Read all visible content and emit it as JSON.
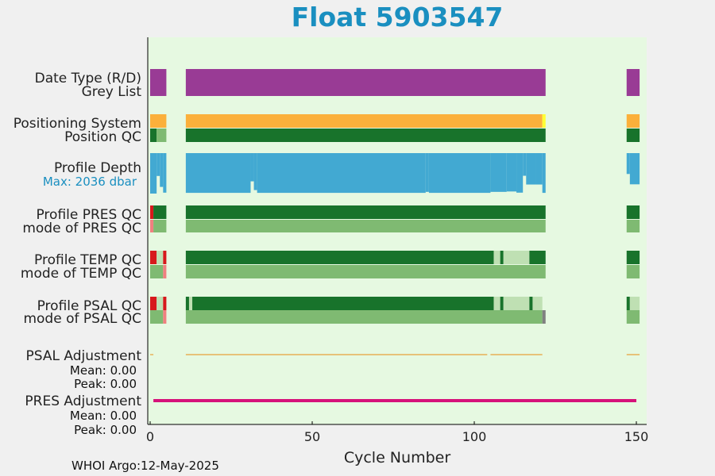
{
  "title": "Float 5903547",
  "footer": "WHOI Argo:12-May-2025",
  "colors": {
    "background": "#e6f9e1",
    "purple": "#993b95",
    "orange": "#fbb03b",
    "yellow": "#ffff33",
    "dark_green": "#18732b",
    "light_green": "#7fba72",
    "pale_green": "#bfe0b3",
    "blue": "#42a9d2",
    "red": "#d7191c",
    "salmon": "#f08080",
    "gray": "#808080",
    "magenta": "#d6127a",
    "adjust_line": "#e8a23a"
  },
  "chart_data": {
    "type": "timeline",
    "xlabel": "Cycle Number",
    "xlim": [
      0,
      151
    ],
    "xticks": [
      0,
      50,
      100,
      150
    ],
    "cycle_ranges": [
      [
        0,
        5
      ],
      [
        11,
        122
      ],
      [
        147,
        151
      ]
    ],
    "rows": [
      {
        "label": "Date Type (R/D)",
        "segments": [
          {
            "start": 0,
            "end": 5,
            "color": "purple"
          },
          {
            "start": 11,
            "end": 122,
            "color": "purple"
          },
          {
            "start": 147,
            "end": 151,
            "color": "purple"
          }
        ]
      },
      {
        "label": "Grey List",
        "segments": []
      },
      {
        "label": "Positioning System",
        "segments": [
          {
            "start": 0,
            "end": 5,
            "color": "orange"
          },
          {
            "start": 11,
            "end": 121,
            "color": "orange"
          },
          {
            "start": 121,
            "end": 122,
            "color": "yellow"
          },
          {
            "start": 147,
            "end": 151,
            "color": "orange"
          }
        ]
      },
      {
        "label": "Position QC",
        "segments": [
          {
            "start": 0,
            "end": 2,
            "color": "dark_green"
          },
          {
            "start": 2,
            "end": 5,
            "color": "light_green"
          },
          {
            "start": 11,
            "end": 122,
            "color": "dark_green"
          },
          {
            "start": 147,
            "end": 151,
            "color": "dark_green"
          }
        ]
      },
      {
        "label": "Profile PRES QC",
        "segments": [
          {
            "start": 0,
            "end": 1,
            "color": "red"
          },
          {
            "start": 1,
            "end": 5,
            "color": "dark_green"
          },
          {
            "start": 11,
            "end": 122,
            "color": "dark_green"
          },
          {
            "start": 147,
            "end": 151,
            "color": "dark_green"
          }
        ]
      },
      {
        "label": "mode of PRES QC",
        "segments": [
          {
            "start": 0,
            "end": 1,
            "color": "salmon"
          },
          {
            "start": 1,
            "end": 5,
            "color": "light_green"
          },
          {
            "start": 11,
            "end": 122,
            "color": "light_green"
          },
          {
            "start": 147,
            "end": 151,
            "color": "light_green"
          }
        ]
      },
      {
        "label": "Profile TEMP QC",
        "segments": [
          {
            "start": 0,
            "end": 2,
            "color": "red"
          },
          {
            "start": 2,
            "end": 4,
            "color": "pale_green"
          },
          {
            "start": 4,
            "end": 5,
            "color": "red"
          },
          {
            "start": 11,
            "end": 106,
            "color": "dark_green"
          },
          {
            "start": 106,
            "end": 108,
            "color": "pale_green"
          },
          {
            "start": 108,
            "end": 109,
            "color": "dark_green"
          },
          {
            "start": 109,
            "end": 117,
            "color": "pale_green"
          },
          {
            "start": 117,
            "end": 122,
            "color": "dark_green"
          },
          {
            "start": 147,
            "end": 151,
            "color": "dark_green"
          }
        ]
      },
      {
        "label": "mode of TEMP QC",
        "segments": [
          {
            "start": 0,
            "end": 4,
            "color": "light_green"
          },
          {
            "start": 4,
            "end": 5,
            "color": "salmon"
          },
          {
            "start": 11,
            "end": 122,
            "color": "light_green"
          },
          {
            "start": 147,
            "end": 151,
            "color": "light_green"
          }
        ]
      },
      {
        "label": "Profile PSAL QC",
        "segments": [
          {
            "start": 0,
            "end": 2,
            "color": "red"
          },
          {
            "start": 2,
            "end": 4,
            "color": "pale_green"
          },
          {
            "start": 4,
            "end": 5,
            "color": "red"
          },
          {
            "start": 11,
            "end": 12,
            "color": "dark_green"
          },
          {
            "start": 12,
            "end": 13,
            "color": "pale_green"
          },
          {
            "start": 13,
            "end": 106,
            "color": "dark_green"
          },
          {
            "start": 106,
            "end": 108,
            "color": "pale_green"
          },
          {
            "start": 108,
            "end": 109,
            "color": "dark_green"
          },
          {
            "start": 109,
            "end": 117,
            "color": "pale_green"
          },
          {
            "start": 117,
            "end": 118,
            "color": "dark_green"
          },
          {
            "start": 118,
            "end": 121,
            "color": "pale_green"
          },
          {
            "start": 147,
            "end": 148,
            "color": "dark_green"
          },
          {
            "start": 148,
            "end": 151,
            "color": "pale_green"
          }
        ]
      },
      {
        "label": "mode of PSAL QC",
        "segments": [
          {
            "start": 0,
            "end": 4,
            "color": "light_green"
          },
          {
            "start": 4,
            "end": 5,
            "color": "salmon"
          },
          {
            "start": 11,
            "end": 121,
            "color": "light_green"
          },
          {
            "start": 121,
            "end": 122,
            "color": "gray"
          },
          {
            "start": 147,
            "end": 151,
            "color": "light_green"
          }
        ]
      }
    ],
    "profile_depth": {
      "label": "Profile Depth",
      "max_label": "Max: 2036 dbar",
      "max_dbar": 2036,
      "segments": [
        {
          "start": 0,
          "end": 2,
          "depth": 2036
        },
        {
          "start": 2,
          "end": 3,
          "depth": 1150
        },
        {
          "start": 3,
          "end": 4,
          "depth": 1700
        },
        {
          "start": 4,
          "end": 5,
          "depth": 1990
        },
        {
          "start": 11,
          "end": 31,
          "depth": 2000
        },
        {
          "start": 31,
          "end": 32,
          "depth": 1420
        },
        {
          "start": 32,
          "end": 33,
          "depth": 1860
        },
        {
          "start": 33,
          "end": 85,
          "depth": 2000
        },
        {
          "start": 85,
          "end": 86,
          "depth": 1950
        },
        {
          "start": 86,
          "end": 105,
          "depth": 2000
        },
        {
          "start": 105,
          "end": 110,
          "depth": 1950
        },
        {
          "start": 110,
          "end": 113,
          "depth": 1930
        },
        {
          "start": 113,
          "end": 115,
          "depth": 1990
        },
        {
          "start": 115,
          "end": 116,
          "depth": 1140
        },
        {
          "start": 116,
          "end": 119,
          "depth": 1580
        },
        {
          "start": 119,
          "end": 121,
          "depth": 1580
        },
        {
          "start": 121,
          "end": 122,
          "depth": 2000
        },
        {
          "start": 147,
          "end": 148,
          "depth": 1050
        },
        {
          "start": 148,
          "end": 151,
          "depth": 1570
        }
      ]
    },
    "psal_adjustment": {
      "label": "PSAL Adjustment",
      "mean": "Mean: 0.00",
      "peak": "Peak: 0.00",
      "segments": [
        {
          "start": 0,
          "end": 1
        },
        {
          "start": 11,
          "end": 104
        },
        {
          "start": 105,
          "end": 121
        },
        {
          "start": 147,
          "end": 151
        }
      ]
    },
    "pres_adjustment": {
      "label": "PRES Adjustment",
      "mean": "Mean: 0.00",
      "peak": "Peak: 0.00",
      "segments": [
        {
          "start": 1,
          "end": 150
        }
      ]
    }
  }
}
